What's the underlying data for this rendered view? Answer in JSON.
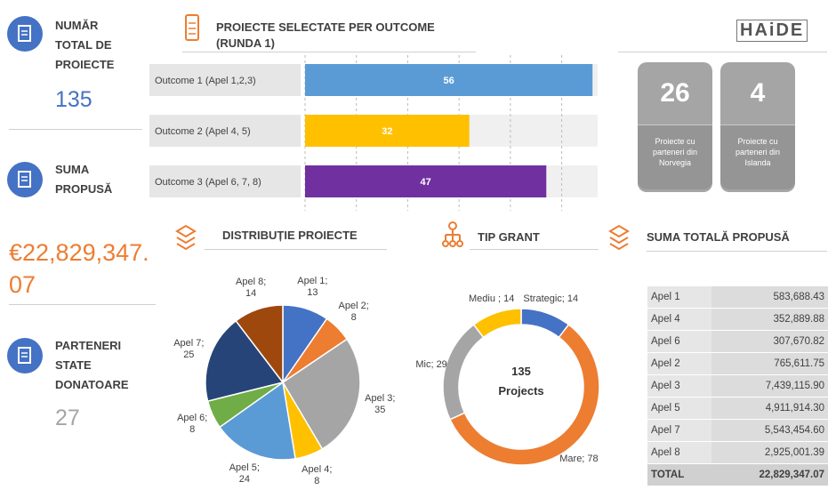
{
  "kpis": [
    {
      "label": "NUMĂR TOTAL DE PROIECTE",
      "value": "135"
    },
    {
      "label": "SUMA PROPUSĂ",
      "value": "€22,829,347.07"
    },
    {
      "label": "PARTENERI STATE DONATOARE",
      "value": "27"
    }
  ],
  "logo": "HAiDE",
  "partner_cards": [
    {
      "value": "26",
      "label": "Proiecte cu parteneri din Norvegia"
    },
    {
      "value": "4",
      "label": "Proiecte cu parteneri din Islanda"
    }
  ],
  "chart_data": [
    {
      "type": "bar",
      "orientation": "horizontal",
      "title": "PROIECTE SELECTATE PER OUTCOME (RUNDA 1)",
      "categories": [
        "Outcome 1 (Apel 1,2,3)",
        "Outcome 2 (Apel 4, 5)",
        "Outcome 3 (Apel 6, 7, 8)"
      ],
      "values": [
        56,
        32,
        47
      ],
      "colors": [
        "#5b9bd5",
        "#ffc000",
        "#7030a0"
      ],
      "xlim": [
        0,
        57
      ],
      "xticks": [
        0,
        10,
        20,
        30,
        40,
        50
      ],
      "grid": true
    },
    {
      "type": "pie",
      "title": "DISTRIBUȚIE PROIECTE",
      "categories": [
        "Apel 1",
        "Apel 2",
        "Apel 3",
        "Apel 4",
        "Apel 5",
        "Apel 6",
        "Apel 7",
        "Apel 8"
      ],
      "values": [
        13,
        8,
        35,
        8,
        24,
        8,
        25,
        14
      ],
      "value_labels": [
        "Apel 1; 13",
        "Apel 2; 8",
        "Apel 3; 35",
        "Apel 4; 8",
        "Apel 5; 24",
        "Apel 6; 8",
        "Apel 7; 25",
        "Apel 8; 14"
      ],
      "colors": [
        "#4472c4",
        "#ed7d31",
        "#a5a5a5",
        "#ffc000",
        "#5b9bd5",
        "#70ad47",
        "#264478",
        "#9e480e"
      ]
    },
    {
      "type": "donut",
      "title": "TIP GRANT",
      "categories": [
        "Strategic",
        "Mare",
        "Mic",
        "Mediu"
      ],
      "values": [
        14,
        78,
        29,
        14
      ],
      "value_labels": [
        "Strategic; 14",
        "Mare; 78",
        "Mic; 29",
        "Mediu ; 14"
      ],
      "colors": [
        "#4472c4",
        "#ed7d31",
        "#a5a5a5",
        "#ffc000"
      ],
      "center_label": [
        "135",
        "Projects"
      ]
    }
  ],
  "table": {
    "title": "SUMA TOTALĂ PROPUSĂ",
    "rows": [
      [
        "Apel 1",
        "583,688.43"
      ],
      [
        "Apel 4",
        "352,889.88"
      ],
      [
        "Apel 6",
        "307,670.82"
      ],
      [
        "Apel 2",
        "765,611.75"
      ],
      [
        "Apel 3",
        "7,439,115.90"
      ],
      [
        "Apel 5",
        "4,911,914.30"
      ],
      [
        "Apel 7",
        "5,543,454.60"
      ],
      [
        "Apel 8",
        "2,925,001.39"
      ]
    ],
    "total": [
      "TOTAL",
      "22,829,347.07"
    ]
  }
}
